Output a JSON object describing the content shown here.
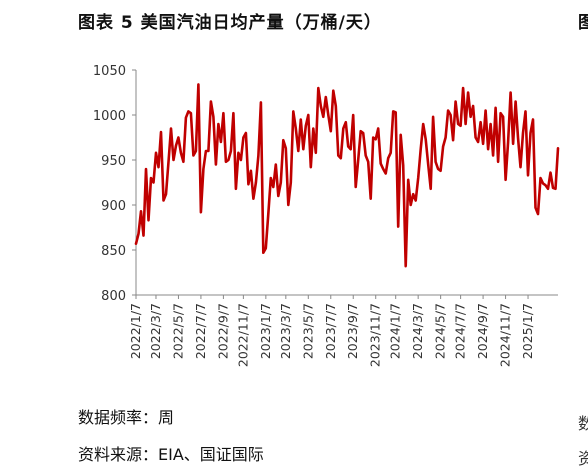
{
  "title": "图表 5 美国汽油日均产量（万桶/天）",
  "edge_glyph": "图",
  "footnotes": {
    "frequency": "数据频率：周",
    "source": "资料来源：EIA、国证国际"
  },
  "edge_footnote_glyphs": [
    "数",
    "资"
  ],
  "colors": {
    "line": "#c00000",
    "axis": "#888888"
  },
  "chart_data": {
    "type": "line",
    "title": "图表 5 美国汽油日均产量（万桶/天）",
    "ylabel": "",
    "xlabel": "",
    "ylim": [
      800,
      1050
    ],
    "yticks": [
      800,
      850,
      900,
      950,
      1000,
      1050
    ],
    "grid": false,
    "legend": "none",
    "x_start": "2022-01-07",
    "x_interval_days": 7,
    "xticks": [
      {
        "week": 0,
        "label": "2022/1/7"
      },
      {
        "week": 8,
        "label": "2022/3/7"
      },
      {
        "week": 17,
        "label": "2022/5/7"
      },
      {
        "week": 26,
        "label": "2022/7/7"
      },
      {
        "week": 35,
        "label": "2022/9/7"
      },
      {
        "week": 43,
        "label": "2022/11/7"
      },
      {
        "week": 52,
        "label": "2023/1/7"
      },
      {
        "week": 60,
        "label": "2023/3/7"
      },
      {
        "week": 69,
        "label": "2023/5/7"
      },
      {
        "week": 78,
        "label": "2023/7/7"
      },
      {
        "week": 87,
        "label": "2023/9/7"
      },
      {
        "week": 96,
        "label": "2023/11/7"
      },
      {
        "week": 104,
        "label": "2024/1/7"
      },
      {
        "week": 113,
        "label": "2024/3/7"
      },
      {
        "week": 122,
        "label": "2024/5/7"
      },
      {
        "week": 130,
        "label": "2024/7/7"
      },
      {
        "week": 139,
        "label": "2024/9/7"
      },
      {
        "week": 148,
        "label": "2024/11/7"
      },
      {
        "week": 157,
        "label": "2025/1/7"
      }
    ],
    "series": [
      {
        "values": [
          857,
          868,
          893,
          866,
          940,
          883,
          930,
          925,
          958,
          942,
          981,
          905,
          912,
          948,
          985,
          950,
          966,
          975,
          958,
          948,
          997,
          1004,
          1002,
          955,
          960,
          1034,
          892,
          940,
          960,
          960,
          1015,
          998,
          945,
          990,
          970,
          1002,
          948,
          950,
          960,
          1002,
          918,
          958,
          950,
          975,
          980,
          923,
          938,
          907,
          925,
          955,
          1014,
          847,
          852,
          890,
          930,
          920,
          945,
          910,
          925,
          972,
          963,
          900,
          925,
          1004,
          985,
          960,
          995,
          962,
          988,
          1000,
          942,
          985,
          958,
          1030,
          1010,
          998,
          1020,
          1000,
          982,
          1027,
          1010,
          955,
          952,
          985,
          992,
          965,
          962,
          1000,
          920,
          950,
          982,
          980,
          955,
          948,
          907,
          975,
          973,
          985,
          946,
          940,
          935,
          952,
          958,
          1004,
          1003,
          876,
          978,
          944,
          832,
          928,
          900,
          912,
          905,
          930,
          962,
          990,
          973,
          945,
          918,
          998,
          948,
          940,
          938,
          965,
          975,
          1005,
          1000,
          972,
          1015,
          990,
          988,
          1030,
          990,
          1025,
          998,
          1010,
          975,
          970,
          992,
          968,
          1005,
          962,
          990,
          955,
          1008,
          948,
          1002,
          998,
          928,
          970,
          1025,
          968,
          1015,
          975,
          942,
          980,
          1004,
          933,
          980,
          995,
          897,
          890,
          930,
          924,
          922,
          918,
          936,
          919,
          918,
          963
        ]
      }
    ]
  }
}
